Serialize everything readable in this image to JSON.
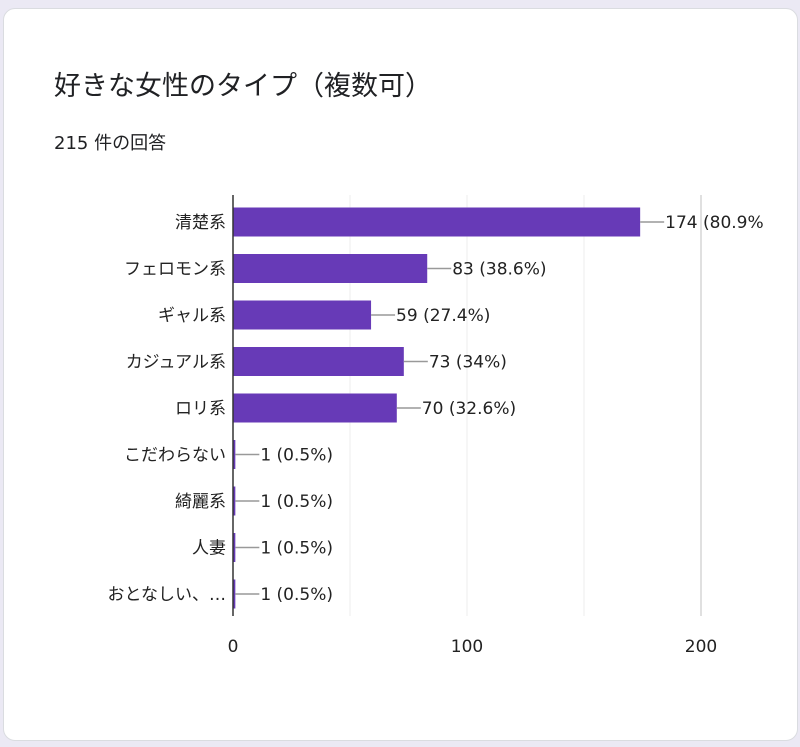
{
  "card": {
    "title": "好きな女性のタイプ（複数可）",
    "subtitle": "215 件の回答"
  },
  "chart_data": {
    "type": "bar",
    "orientation": "horizontal",
    "categories": [
      "清楚系",
      "フェロモン系",
      "ギャル系",
      "カジュアル系",
      "ロリ系",
      "こだわらない",
      "綺麗系",
      "人妻",
      "おとなしい、…"
    ],
    "values": [
      174,
      83,
      59,
      73,
      70,
      1,
      1,
      1,
      1
    ],
    "data_labels": [
      "174 (80.9%",
      "83 (38.6%)",
      "59 (27.4%)",
      "73 (34%)",
      "70 (32.6%)",
      "1 (0.5%)",
      "1 (0.5%)",
      "1 (0.5%)",
      "1 (0.5%)"
    ],
    "xlim": [
      0,
      200
    ],
    "x_ticks": [
      "0",
      "100",
      "200"
    ],
    "grid": true,
    "bar_color": "#673ab7"
  }
}
